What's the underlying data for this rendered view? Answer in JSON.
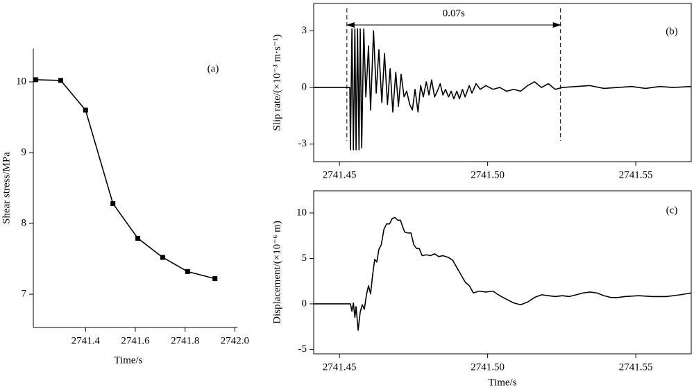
{
  "chart_data": [
    {
      "type": "line",
      "annotation": "(a)",
      "xlabel": "Time/s",
      "ylabel": "Shear stress/MPa",
      "x": [
        2741.2,
        2741.3,
        2741.4,
        2741.51,
        2741.61,
        2741.71,
        2741.81,
        2741.92
      ],
      "series": [
        {
          "color": "#000000",
          "values": [
            10.03,
            10.02,
            9.6,
            8.28,
            7.79,
            7.52,
            7.32,
            7.22
          ]
        }
      ],
      "markers": true,
      "xlim": [
        2741.19,
        2742.01
      ],
      "xticks": [
        2741.4,
        2741.6,
        2741.8,
        {
          "value": 2742,
          "label": "2742.0"
        }
      ],
      "ylim": [
        6.53,
        10.47
      ],
      "yticks": [
        7,
        8,
        9,
        10
      ]
    },
    {
      "type": "line",
      "annotation": "(b)",
      "ylabel": "Slip rate/(×10⁻³ m·s⁻¹)",
      "interval_label": "0.07s",
      "interval": [
        2741.4525,
        2741.5246
      ],
      "x": [
        2741.4413,
        2741.4535,
        2741.4537,
        2741.4542,
        2741.4547,
        2741.4552,
        2741.4556,
        2741.4561,
        2741.4566,
        2741.457,
        2741.4575,
        2741.4582,
        2741.4589,
        2741.4598,
        2741.4605,
        2741.4615,
        2741.4624,
        2741.4633,
        2741.4643,
        2741.4652,
        2741.4662,
        2741.4671,
        2741.468,
        2741.469,
        2741.4699,
        2741.4708,
        2741.4718,
        2741.4727,
        2741.4737,
        2741.4746,
        2741.4755,
        2741.4765,
        2741.4774,
        2741.4783,
        2741.4793,
        2741.4802,
        2741.4811,
        2741.4821,
        2741.483,
        2741.484,
        2741.4849,
        2741.4858,
        2741.4868,
        2741.4877,
        2741.4886,
        2741.4896,
        2741.4905,
        2741.4915,
        2741.4924,
        2741.4938,
        2741.4947,
        2741.4961,
        2741.4975,
        2741.4994,
        2741.5018,
        2741.5041,
        2741.5064,
        2741.5088,
        2741.5111,
        2741.5135,
        2741.5158,
        2741.5182,
        2741.5205,
        2741.5228,
        2741.5252,
        2741.5299,
        2741.5345,
        2741.5392,
        2741.5439,
        2741.5486,
        2741.5533,
        2741.558,
        2741.5626,
        2741.5687
      ],
      "series": [
        {
          "color": "#000000",
          "values": [
            0,
            0,
            -3.3,
            3.1,
            -3.3,
            3.1,
            -3.3,
            3.1,
            -3.3,
            3.1,
            -3.2,
            3.1,
            -0.5,
            2.2,
            -1.2,
            3.0,
            -0.3,
            2.0,
            -0.8,
            1.8,
            -0.9,
            1.0,
            -1.3,
            0.8,
            -1.0,
            0.7,
            -0.5,
            -0.2,
            -0.9,
            -1.2,
            -0.1,
            -1.3,
            0.1,
            -0.5,
            0.3,
            -0.4,
            0.4,
            -0.5,
            -0.2,
            0.2,
            -0.4,
            -0.1,
            -0.5,
            -0.2,
            -0.6,
            -0.2,
            -0.6,
            -0.1,
            -0.5,
            0.1,
            -0.3,
            0.2,
            -0.1,
            0.1,
            -0.1,
            0.0,
            -0.2,
            -0.1,
            -0.2,
            0.1,
            0.3,
            0.0,
            0.2,
            -0.1,
            0.0,
            0.05,
            0.1,
            -0.05,
            0.0,
            0.05,
            -0.05,
            0.05,
            0.0,
            0.05
          ]
        }
      ],
      "xlim": [
        2741.4413,
        2741.5687
      ],
      "xticks": [
        2741.45,
        {
          "value": 2741.5,
          "label": "2741.50"
        },
        2741.55
      ],
      "ylim": [
        -3.93,
        4.45
      ],
      "yticks": [
        -3,
        0,
        3
      ]
    },
    {
      "type": "line",
      "annotation": "(c)",
      "xlabel": "Time/s",
      "ylabel": "Displacement/(×10⁻⁶ m)",
      "x": [
        2741.4413,
        2741.4537,
        2741.4542,
        2741.4547,
        2741.4552,
        2741.4556,
        2741.4563,
        2741.457,
        2741.4577,
        2741.4584,
        2741.4591,
        2741.4598,
        2741.4605,
        2741.4612,
        2741.4619,
        2741.4626,
        2741.4633,
        2741.4641,
        2741.465,
        2741.4659,
        2741.4669,
        2741.4678,
        2741.4687,
        2741.4697,
        2741.4706,
        2741.4713,
        2741.472,
        2741.473,
        2741.4741,
        2741.4751,
        2741.476,
        2741.4769,
        2741.4779,
        2741.4793,
        2741.4807,
        2741.4821,
        2741.4835,
        2741.4849,
        2741.4868,
        2741.4882,
        2741.4896,
        2741.491,
        2741.4924,
        2741.4938,
        2741.4952,
        2741.4971,
        2741.4994,
        2741.5018,
        2741.5041,
        2741.5064,
        2741.5088,
        2741.5111,
        2741.5135,
        2741.5158,
        2741.5182,
        2741.5205,
        2741.5228,
        2741.5252,
        2741.5275,
        2741.5299,
        2741.5322,
        2741.5345,
        2741.5369,
        2741.5392,
        2741.5416,
        2741.5439,
        2741.5463,
        2741.5509,
        2741.5556,
        2741.5603,
        2741.565,
        2741.5687
      ],
      "series": [
        {
          "color": "#000000",
          "values": [
            0,
            0,
            -0.8,
            0.1,
            -1.5,
            -0.3,
            -2.9,
            -0.9,
            -0.1,
            -0.6,
            1.0,
            2.0,
            1.1,
            3.2,
            4.9,
            4.6,
            6.0,
            6.5,
            8.2,
            8.8,
            8.8,
            9.4,
            9.5,
            9.2,
            9.2,
            8.5,
            7.9,
            7.8,
            7.8,
            6.5,
            6.1,
            6.1,
            5.3,
            5.4,
            5.3,
            5.5,
            5.2,
            5.3,
            5.1,
            4.8,
            4.0,
            3.2,
            2.4,
            2.0,
            1.2,
            1.4,
            1.3,
            1.4,
            0.9,
            0.5,
            0.1,
            -0.1,
            0.2,
            0.7,
            1.0,
            0.9,
            0.8,
            0.9,
            0.8,
            1.0,
            1.2,
            1.3,
            1.2,
            0.9,
            0.7,
            0.7,
            0.8,
            0.9,
            0.8,
            0.8,
            1.0,
            1.2
          ]
        }
      ],
      "xlim": [
        2741.4413,
        2741.5687
      ],
      "xticks": [
        2741.45,
        {
          "value": 2741.5,
          "label": "2741.50"
        },
        2741.55
      ],
      "ylim": [
        -5.5,
        12.44
      ],
      "yticks": [
        -5,
        0,
        5,
        10
      ]
    }
  ]
}
